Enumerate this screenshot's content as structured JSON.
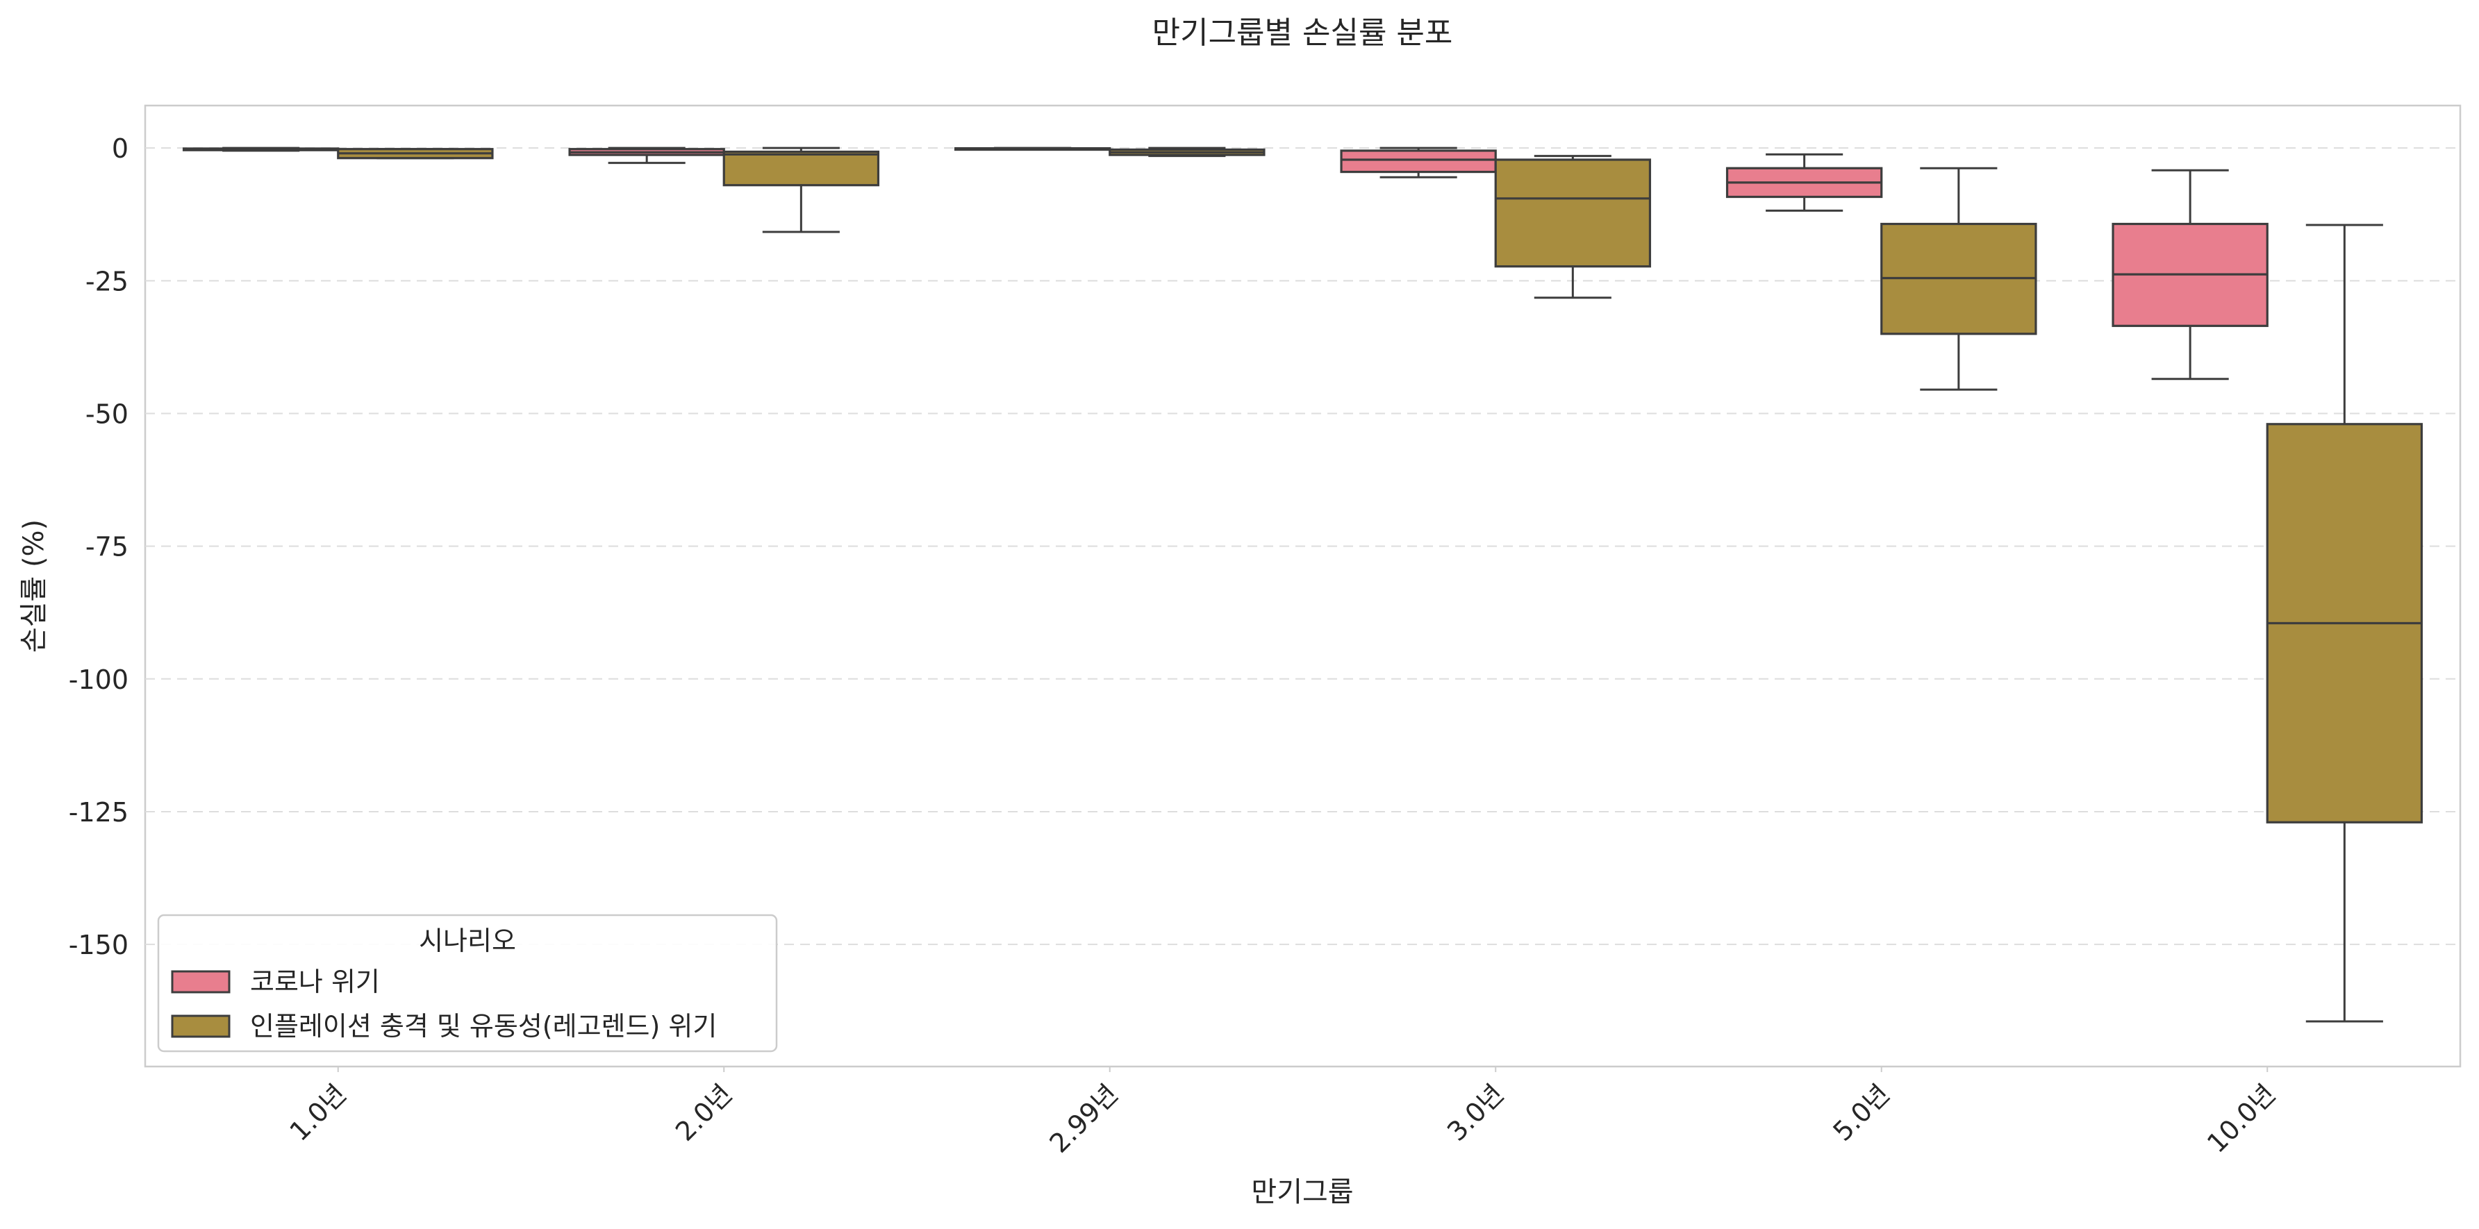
{
  "chart_data": {
    "type": "box",
    "title": "만기그룹별 손실률 분포",
    "xlabel": "만기그룹",
    "ylabel": "손실률 (%)",
    "categories": [
      "1.0년",
      "2.0년",
      "2.99년",
      "3.0년",
      "5.0년",
      "10.0년"
    ],
    "y_ticks": [
      0,
      -25,
      -50,
      -75,
      -100,
      -125,
      -150
    ],
    "y_tick_labels": [
      "0",
      "-25",
      "-50",
      "-75",
      "-100",
      "-125",
      "-150"
    ],
    "ylim": [
      -173,
      8
    ],
    "grid": "y-dashed",
    "legend": {
      "title": "시나리오",
      "placement": "lower-left"
    },
    "series": [
      {
        "name": "코로나 위기",
        "color": "#e87e8e",
        "boxes": [
          {
            "min": -0.5,
            "q1": -0.4,
            "median": -0.2,
            "q3": -0.1,
            "max": 0.0
          },
          {
            "min": -2.8,
            "q1": -1.3,
            "median": -0.8,
            "q3": -0.2,
            "max": 0.0
          },
          {
            "min": -0.3,
            "q1": -0.2,
            "median": -0.1,
            "q3": -0.05,
            "max": 0.0
          },
          {
            "min": -5.5,
            "q1": -4.5,
            "median": -2.2,
            "q3": -0.5,
            "max": 0.0
          },
          {
            "min": -11.8,
            "q1": -9.2,
            "median": -6.5,
            "q3": -3.8,
            "max": -1.2
          },
          {
            "min": -43.5,
            "q1": -33.5,
            "median": -23.8,
            "q3": -14.3,
            "max": -4.2
          }
        ]
      },
      {
        "name": "인플레이션 충격 및 유동성(레고렌드) 위기",
        "color": "#a88d3f",
        "boxes": [
          {
            "min": -1.9,
            "q1": -1.9,
            "median": -1.0,
            "q3": -0.2,
            "max": -0.2
          },
          {
            "min": -15.8,
            "q1": -7.0,
            "median": -1.2,
            "q3": -0.7,
            "max": 0.0
          },
          {
            "min": -1.5,
            "q1": -1.3,
            "median": -0.8,
            "q3": -0.3,
            "max": 0.0
          },
          {
            "min": -28.2,
            "q1": -22.3,
            "median": -9.5,
            "q3": -2.2,
            "max": -1.5
          },
          {
            "min": -45.5,
            "q1": -35.0,
            "median": -24.5,
            "q3": -14.3,
            "max": -3.8
          },
          {
            "min": -164.5,
            "q1": -127.0,
            "median": -89.5,
            "q3": -52.0,
            "max": -14.5
          }
        ]
      }
    ]
  }
}
